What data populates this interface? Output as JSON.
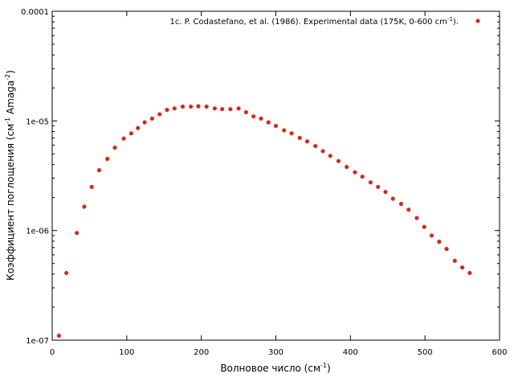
{
  "chart_data": {
    "type": "scatter",
    "xlabel": "Волновое число (см",
    "xlabel_sup": "-1",
    "xlabel_end": ")",
    "ylabel": "Коэффициент поглощения (см",
    "ylabel_sup1": "-1",
    "ylabel_mid": " Amaga",
    "ylabel_sup2": "-2",
    "ylabel_end": ")",
    "xlim": [
      0,
      600
    ],
    "ylim": [
      1e-07,
      0.0001
    ],
    "yscale": "log",
    "grid": false,
    "legend_placement": "top-right",
    "x_ticks": [
      0,
      100,
      200,
      300,
      400,
      500,
      600
    ],
    "x_tick_labels": [
      "0",
      "100",
      "200",
      "300",
      "400",
      "500",
      "600"
    ],
    "y_ticks": [
      1e-07,
      1e-06,
      1e-05,
      0.0001
    ],
    "y_tick_labels": [
      "1e-07",
      "1e-06",
      "1e-05",
      "0.0001"
    ],
    "series": [
      {
        "name": "1c. P. Codastefano, et al. (1986). Experimental data (175K, 0-600 cm",
        "name_sup": "-1",
        "name_end": ").",
        "color": "#d42a1e",
        "x": [
          9,
          19,
          33,
          43,
          53,
          63,
          74,
          84,
          96,
          106,
          115,
          124,
          134,
          144,
          154,
          164,
          175,
          186,
          196,
          207,
          218,
          228,
          239,
          250,
          260,
          270,
          280,
          290,
          300,
          311,
          321,
          332,
          342,
          353,
          363,
          373,
          384,
          395,
          406,
          416,
          427,
          437,
          447,
          457,
          468,
          478,
          489,
          499,
          509,
          519,
          529,
          540,
          550,
          560
        ],
        "y": [
          1.1e-07,
          4.1e-07,
          9.5e-07,
          1.65e-06,
          2.5e-06,
          3.55e-06,
          4.5e-06,
          5.7e-06,
          6.9e-06,
          7.7e-06,
          8.6e-06,
          9.7e-06,
          1.05e-05,
          1.15e-05,
          1.26e-05,
          1.3e-05,
          1.35e-05,
          1.35e-05,
          1.36e-05,
          1.35e-05,
          1.3e-05,
          1.28e-05,
          1.28e-05,
          1.3e-05,
          1.2e-05,
          1.1e-05,
          1.05e-05,
          9.7e-06,
          9e-06,
          8.2e-06,
          7.7e-06,
          7e-06,
          6.5e-06,
          5.9e-06,
          5.3e-06,
          4.8e-06,
          4.3e-06,
          3.8e-06,
          3.4e-06,
          3.1e-06,
          2.75e-06,
          2.5e-06,
          2.25e-06,
          1.95e-06,
          1.75e-06,
          1.55e-06,
          1.3e-06,
          1.08e-06,
          9e-07,
          7.9e-07,
          6.8e-07,
          5.3e-07,
          4.6e-07,
          4.1e-07
        ]
      }
    ]
  }
}
